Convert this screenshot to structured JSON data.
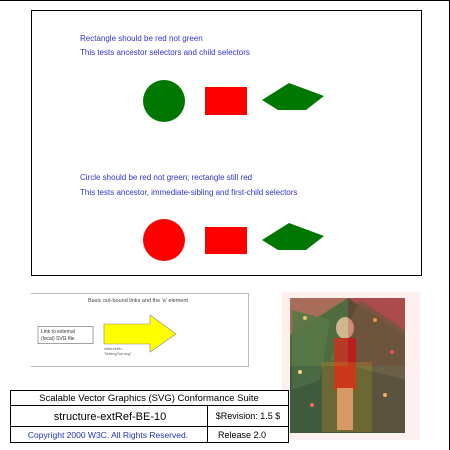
{
  "test": {
    "line1": "Rectangle should be red not green",
    "line2": "This tests ancestor selectors and child selectors",
    "line3": "Circle should be red not green; rectangle still red",
    "line4": "This tests ancestor, immediate-sibling and first-child selectors"
  },
  "thumbnail": {
    "title": "Basic out-bound links and the 'a' element",
    "link_label_1": "Link to external",
    "link_label_2": "(local) SVG file",
    "caption_1": "xlink:href=",
    "caption_2": "\"linkingToc.svg\""
  },
  "footer": {
    "suite_title": "Scalable Vector Graphics (SVG) Conformance Suite",
    "test_name": "structure-extRef-BE-10",
    "revision": "$Revision: 1.5 $",
    "copyright": "Copyright 2000 W3C. All Rights Reserved.",
    "release": "Release 2.0"
  },
  "colors": {
    "text_blue": "#3333cc",
    "green": "#007700",
    "red": "#ff0000",
    "arrow_yellow": "#ffff00"
  }
}
